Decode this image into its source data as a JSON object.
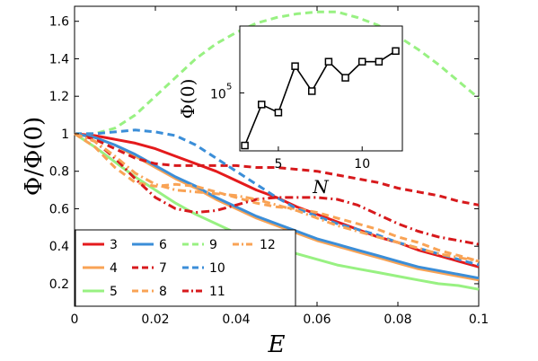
{
  "chart_data": [
    {
      "type": "line",
      "xlabel": "E",
      "ylabel": "Φ/Φ(0)",
      "xlim": [
        0,
        0.1
      ],
      "ylim": [
        0.08,
        1.68
      ],
      "xticks": [
        "0",
        "0.02",
        "0.04",
        "0.06",
        "0.08",
        "0.1"
      ],
      "yticks": [
        "0.2",
        "0.4",
        "0.6",
        "0.8",
        "1",
        "1.2",
        "1.4",
        "1.6"
      ],
      "grid": false,
      "legend_position": "bottom-left",
      "legend_columns": 5,
      "x": [
        0,
        0.005,
        0.01,
        0.015,
        0.02,
        0.025,
        0.03,
        0.035,
        0.04,
        0.045,
        0.05,
        0.055,
        0.06,
        0.065,
        0.07,
        0.075,
        0.08,
        0.085,
        0.09,
        0.095,
        0.1
      ],
      "series": [
        {
          "name": "3",
          "color": "#e41a1c",
          "dash": "solid",
          "values": [
            1.0,
            0.99,
            0.97,
            0.95,
            0.92,
            0.88,
            0.84,
            0.8,
            0.75,
            0.7,
            0.66,
            0.61,
            0.57,
            0.53,
            0.49,
            0.45,
            0.42,
            0.38,
            0.35,
            0.32,
            0.29
          ]
        },
        {
          "name": "4",
          "color": "#f9a355",
          "dash": "solid",
          "values": [
            1.0,
            0.98,
            0.94,
            0.88,
            0.82,
            0.76,
            0.71,
            0.65,
            0.6,
            0.55,
            0.51,
            0.47,
            0.43,
            0.4,
            0.37,
            0.34,
            0.31,
            0.28,
            0.26,
            0.24,
            0.22
          ]
        },
        {
          "name": "5",
          "color": "#98f182",
          "dash": "solid",
          "values": [
            1.0,
            0.93,
            0.85,
            0.77,
            0.7,
            0.63,
            0.57,
            0.52,
            0.47,
            0.43,
            0.39,
            0.36,
            0.33,
            0.3,
            0.28,
            0.26,
            0.24,
            0.22,
            0.2,
            0.19,
            0.17
          ]
        },
        {
          "name": "6",
          "color": "#3b8ed8",
          "dash": "solid",
          "values": [
            1.0,
            0.98,
            0.94,
            0.89,
            0.83,
            0.77,
            0.72,
            0.66,
            0.61,
            0.56,
            0.52,
            0.48,
            0.44,
            0.41,
            0.38,
            0.35,
            0.32,
            0.29,
            0.27,
            0.25,
            0.23
          ]
        },
        {
          "name": "7",
          "color": "#d7191c",
          "dash": "dash",
          "values": [
            1.0,
            0.97,
            0.92,
            0.87,
            0.84,
            0.83,
            0.83,
            0.83,
            0.83,
            0.82,
            0.82,
            0.81,
            0.8,
            0.78,
            0.76,
            0.74,
            0.71,
            0.69,
            0.67,
            0.64,
            0.62
          ]
        },
        {
          "name": "8",
          "color": "#f9a355",
          "dash": "dash",
          "values": [
            1.0,
            0.93,
            0.82,
            0.74,
            0.72,
            0.73,
            0.72,
            0.69,
            0.66,
            0.63,
            0.61,
            0.6,
            0.58,
            0.55,
            0.52,
            0.49,
            0.45,
            0.42,
            0.38,
            0.35,
            0.32
          ]
        },
        {
          "name": "9",
          "color": "#98f182",
          "dash": "dash",
          "values": [
            1.0,
            1.0,
            1.03,
            1.1,
            1.2,
            1.3,
            1.4,
            1.48,
            1.54,
            1.59,
            1.62,
            1.64,
            1.65,
            1.65,
            1.62,
            1.58,
            1.52,
            1.45,
            1.37,
            1.28,
            1.19
          ]
        },
        {
          "name": "10",
          "color": "#3b8ed8",
          "dash": "dash",
          "values": [
            1.0,
            1.0,
            1.01,
            1.02,
            1.01,
            0.99,
            0.94,
            0.87,
            0.8,
            0.73,
            0.66,
            0.6,
            0.56,
            0.52,
            0.49,
            0.46,
            0.42,
            0.39,
            0.36,
            0.33,
            0.3
          ]
        },
        {
          "name": "11",
          "color": "#d7191c",
          "dash": "dashdot",
          "values": [
            1.0,
            0.96,
            0.87,
            0.76,
            0.66,
            0.6,
            0.58,
            0.59,
            0.62,
            0.65,
            0.66,
            0.66,
            0.66,
            0.65,
            0.62,
            0.57,
            0.52,
            0.48,
            0.45,
            0.43,
            0.41
          ]
        },
        {
          "name": "12",
          "color": "#f9a355",
          "dash": "dashdot",
          "values": [
            1.0,
            0.96,
            0.88,
            0.79,
            0.73,
            0.7,
            0.69,
            0.68,
            0.67,
            0.65,
            0.62,
            0.59,
            0.55,
            0.51,
            0.48,
            0.45,
            0.42,
            0.39,
            0.36,
            0.34,
            0.32
          ]
        }
      ]
    },
    {
      "type": "line",
      "xlabel": "N",
      "ylabel": "Φ(0)",
      "y_scale": "log",
      "xlim": [
        2.7,
        12.4
      ],
      "xticks": [
        "5",
        "10"
      ],
      "ytick_label": "10",
      "ytick_exponent": "5",
      "ytick_value": 100000,
      "ylim_log10": [
        4.35,
        5.75
      ],
      "grid": false,
      "marker": "square",
      "color": "#000000",
      "x": [
        3,
        4,
        5,
        6,
        7,
        8,
        9,
        10,
        11,
        12
      ],
      "y_log10": [
        4.41,
        4.87,
        4.78,
        5.3,
        5.02,
        5.35,
        5.17,
        5.35,
        5.35,
        5.47
      ]
    }
  ]
}
